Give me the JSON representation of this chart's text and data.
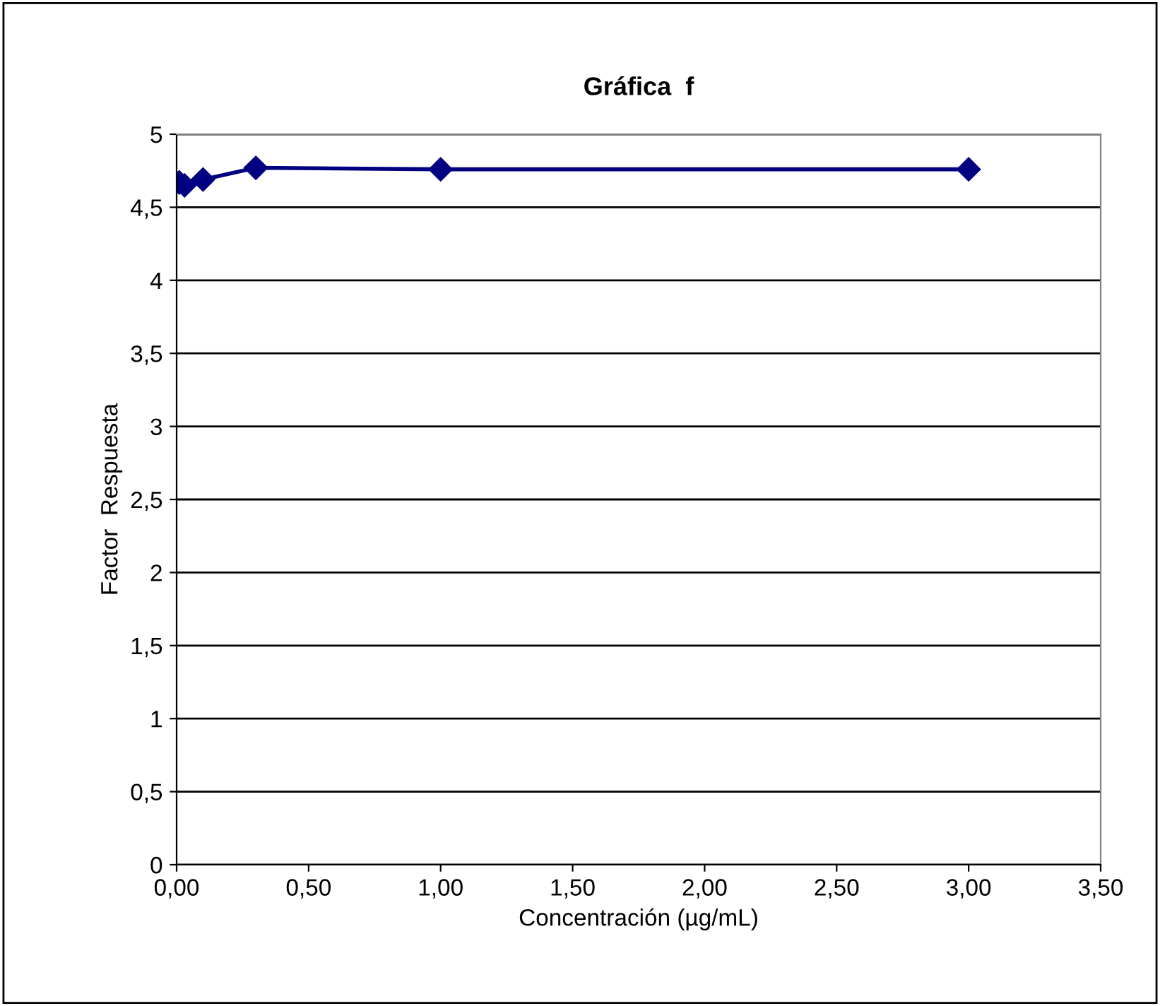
{
  "chart_data": {
    "type": "line",
    "title": "Gráfica  f",
    "xlabel": "Concentración (µg/mL)",
    "ylabel": "Factor  Respuesta",
    "x": [
      0.01,
      0.03,
      0.1,
      0.3,
      1,
      3
    ],
    "series": [
      {
        "color": "#000080",
        "values": [
          4.67,
          4.65,
          4.69,
          4.77,
          4.76,
          4.76
        ]
      }
    ],
    "xlim": [
      0,
      3.5
    ],
    "xticks": [
      {
        "value": 0,
        "label": "0,00"
      },
      {
        "value": 0.5,
        "label": "0,50"
      },
      {
        "value": 1,
        "label": "1,00"
      },
      {
        "value": 1.5,
        "label": "1,50"
      },
      {
        "value": 2,
        "label": "2,00"
      },
      {
        "value": 2.5,
        "label": "2,50"
      },
      {
        "value": 3,
        "label": "3,00"
      },
      {
        "value": 3.5,
        "label": "3,50"
      }
    ],
    "ylim": [
      0,
      5
    ],
    "yticks": [
      0,
      {
        "value": 0.5,
        "label": "0,5"
      },
      1,
      {
        "value": 1.5,
        "label": "1,5"
      },
      2,
      {
        "value": 2.5,
        "label": "2,5"
      },
      3,
      {
        "value": 3.5,
        "label": "3,5"
      },
      4,
      {
        "value": 4.5,
        "label": "4,5"
      },
      5
    ],
    "grid": "y",
    "marker": "diamond",
    "line_style": "solid"
  }
}
